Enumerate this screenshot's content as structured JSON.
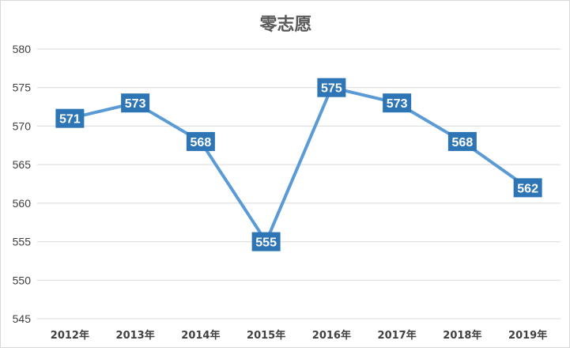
{
  "chart_data": {
    "type": "line",
    "title": "零志愿",
    "categories": [
      "2012年",
      "2013年",
      "2014年",
      "2015年",
      "2016年",
      "2017年",
      "2018年",
      "2019年"
    ],
    "series": [
      {
        "values": [
          571,
          573,
          568,
          555,
          575,
          573,
          568,
          562
        ]
      }
    ],
    "ylim": [
      545,
      580
    ],
    "yticks": [
      "545",
      "550",
      "555",
      "560",
      "565",
      "570",
      "575",
      "580"
    ],
    "grid": true,
    "legend": "none",
    "data_labels": true,
    "line_color": "#5b9bd5",
    "label_box_color": "#2e75b6",
    "grid_color": "#d9d9d9"
  }
}
